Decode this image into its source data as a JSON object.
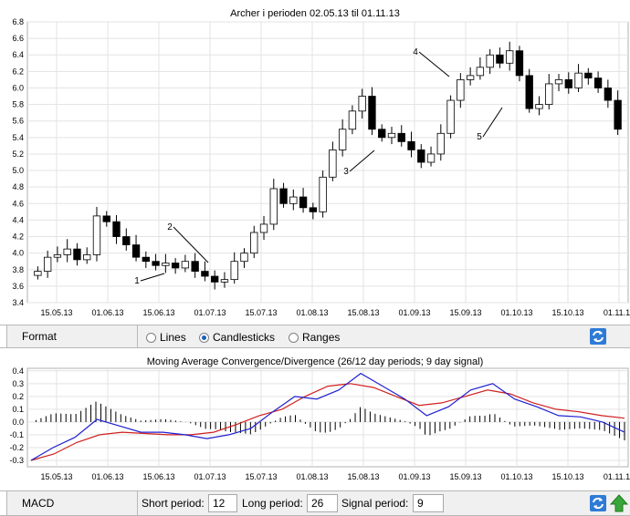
{
  "price_chart": {
    "title": "Archer i perioden 02.05.13 til 01.11.13",
    "y_ticks": [
      "6.8",
      "6.6",
      "6.4",
      "6.2",
      "6.0",
      "5.8",
      "5.6",
      "5.4",
      "5.2",
      "5.0",
      "4.8",
      "4.6",
      "4.4",
      "4.2",
      "4.0",
      "3.8",
      "3.6",
      "3.4"
    ],
    "x_ticks": [
      "15.05.13",
      "01.06.13",
      "15.06.13",
      "01.07.13",
      "15.07.13",
      "01.08.13",
      "15.08.13",
      "01.09.13",
      "15.09.13",
      "01.10.13",
      "15.10.13",
      "01.11.13"
    ],
    "annotations": [
      "1",
      "2",
      "3",
      "4",
      "5"
    ]
  },
  "format_bar": {
    "label": "Format",
    "options": [
      "Lines",
      "Candlesticks",
      "Ranges"
    ],
    "selected": "Candlesticks",
    "refresh_icon": "refresh-icon"
  },
  "macd_chart": {
    "title": "Moving Average Convergence/Divergence (26/12 day periods; 9 day signal)",
    "y_ticks": [
      "0.4",
      "0.3",
      "0.2",
      "0.1",
      "0.0",
      "-0.1",
      "-0.2",
      "-0.3"
    ],
    "x_ticks": [
      "15.05.13",
      "01.06.13",
      "15.06.13",
      "01.07.13",
      "15.07.13",
      "01.08.13",
      "15.08.13",
      "01.09.13",
      "15.09.13",
      "01.10.13",
      "15.10.13",
      "01.11.13"
    ]
  },
  "macd_bar": {
    "label": "MACD",
    "short_label": "Short period:",
    "short_value": "12",
    "long_label": "Long period:",
    "long_value": "26",
    "signal_label": "Signal period:",
    "signal_value": "9",
    "refresh_icon": "refresh-icon",
    "up_icon": "up-arrow-icon"
  },
  "colors": {
    "macd_line": "#2020d0",
    "signal_line": "#d02020",
    "bull_candle": "#ffffff",
    "bear_candle": "#000000"
  },
  "chart_data": [
    {
      "type": "candlestick",
      "title": "Archer i perioden 02.05.13 til 01.11.13",
      "ylim": [
        3.4,
        6.8
      ],
      "x_range": [
        "02.05.13",
        "01.11.13"
      ],
      "grid": true,
      "ohlc_close": [
        3.78,
        3.95,
        3.98,
        4.05,
        3.92,
        3.98,
        4.45,
        4.38,
        4.2,
        4.1,
        3.95,
        3.9,
        3.85,
        3.88,
        3.82,
        3.9,
        3.78,
        3.72,
        3.65,
        3.68,
        3.9,
        4.0,
        4.25,
        4.35,
        4.78,
        4.6,
        4.68,
        4.55,
        4.5,
        4.92,
        5.25,
        5.5,
        5.72,
        5.9,
        5.5,
        5.4,
        5.45,
        5.35,
        5.25,
        5.1,
        5.2,
        5.45,
        5.85,
        6.1,
        6.15,
        6.25,
        6.4,
        6.3,
        6.45,
        6.15,
        5.75,
        5.8,
        6.05,
        6.1,
        6.0,
        6.18,
        6.12,
        6.0,
        5.85,
        5.5
      ]
    },
    {
      "type": "line",
      "title": "Moving Average Convergence/Divergence (26/12 day periods; 9 day signal)",
      "ylim": [
        -0.35,
        0.42
      ],
      "series": [
        {
          "values": [
            -0.3,
            -0.2,
            -0.12,
            0.02,
            -0.03,
            -0.08,
            -0.08,
            -0.1,
            -0.13,
            -0.1,
            -0.05,
            0.08,
            0.2,
            0.18,
            0.25,
            0.38,
            0.28,
            0.18,
            0.05,
            0.12,
            0.25,
            0.3,
            0.18,
            0.12,
            0.05,
            0.04,
            0.0,
            -0.08
          ]
        },
        {
          "values": [
            -0.3,
            -0.25,
            -0.16,
            -0.1,
            -0.08,
            -0.09,
            -0.1,
            -0.1,
            -0.08,
            -0.02,
            0.05,
            0.1,
            0.2,
            0.28,
            0.3,
            0.27,
            0.2,
            0.13,
            0.15,
            0.2,
            0.25,
            0.22,
            0.15,
            0.1,
            0.08,
            0.05,
            0.03
          ]
        }
      ]
    }
  ]
}
